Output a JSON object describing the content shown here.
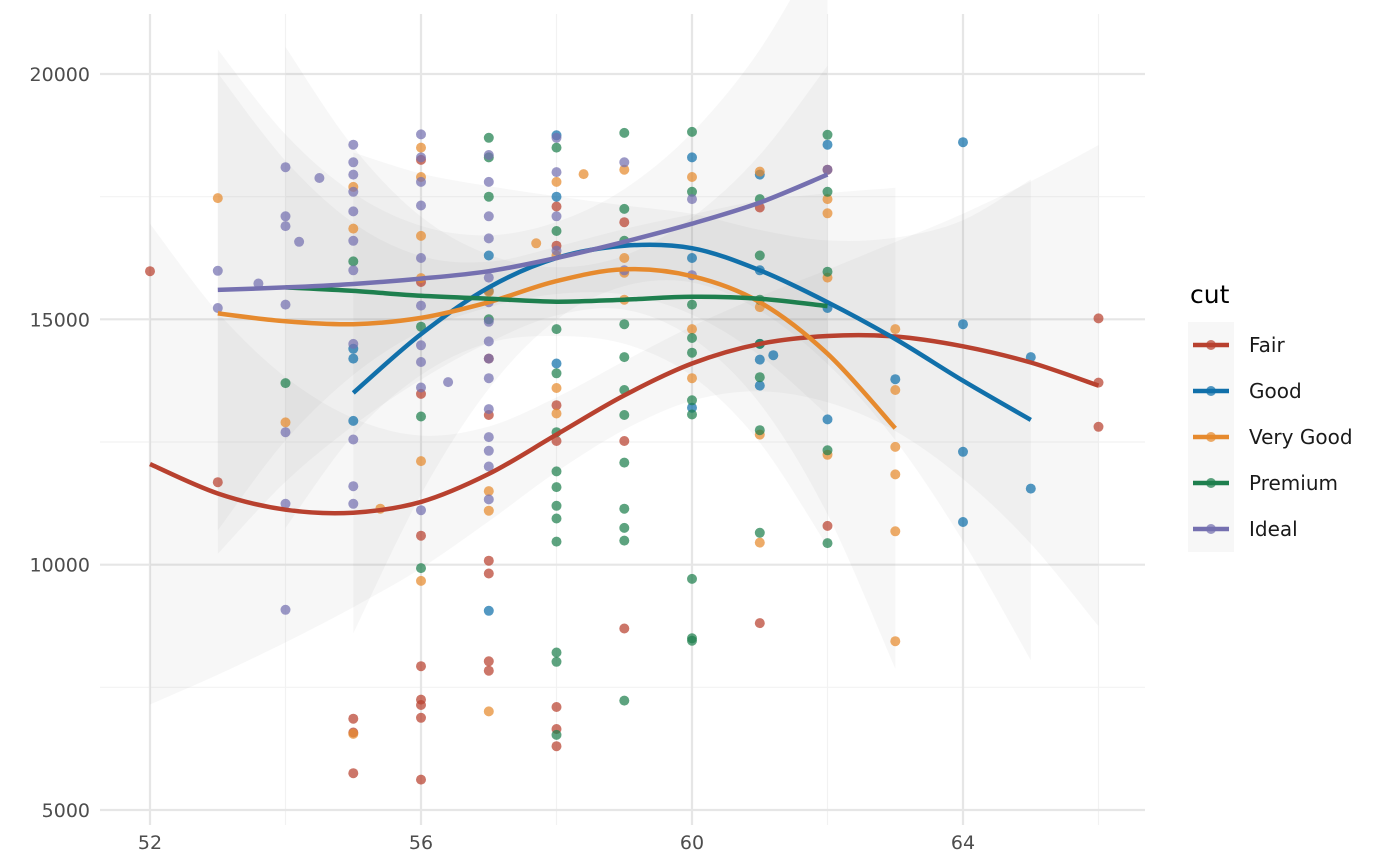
{
  "chart_data": {
    "type": "scatter",
    "title": "",
    "xlabel": "",
    "ylabel": "",
    "xlim": [
      51.8,
      66.5
    ],
    "ylim": [
      4900,
      21200
    ],
    "x_ticks": [
      52,
      56,
      60,
      64
    ],
    "x_tick_labels": [
      "52",
      "56",
      "60",
      "64"
    ],
    "y_ticks": [
      5000,
      10000,
      15000,
      20000
    ],
    "y_tick_labels": [
      "5000",
      "10000",
      "15000",
      "20000"
    ],
    "grid": true,
    "legend": {
      "title": "cut",
      "position": "right"
    },
    "series": [
      {
        "name": "Fair",
        "color": "#B8412F",
        "points": [
          [
            52,
            15980
          ],
          [
            53,
            11680
          ],
          [
            55,
            6860
          ],
          [
            55,
            6580
          ],
          [
            55,
            5750
          ],
          [
            56,
            18250
          ],
          [
            56,
            15760
          ],
          [
            56,
            13480
          ],
          [
            56,
            10590
          ],
          [
            56,
            7930
          ],
          [
            56,
            7250
          ],
          [
            56,
            7140
          ],
          [
            56,
            6880
          ],
          [
            56,
            5620
          ],
          [
            57,
            14200
          ],
          [
            57,
            13050
          ],
          [
            57,
            10080
          ],
          [
            57,
            9820
          ],
          [
            57,
            8030
          ],
          [
            57,
            7840
          ],
          [
            58,
            17300
          ],
          [
            58,
            16500
          ],
          [
            58,
            13250
          ],
          [
            58,
            12520
          ],
          [
            58,
            7100
          ],
          [
            58,
            6650
          ],
          [
            58,
            6300
          ],
          [
            59,
            16980
          ],
          [
            59,
            12520
          ],
          [
            59,
            8700
          ],
          [
            61,
            17280
          ],
          [
            61,
            8810
          ],
          [
            62,
            18050
          ],
          [
            62,
            10790
          ],
          [
            66,
            15020
          ],
          [
            66,
            13710
          ],
          [
            66,
            12810
          ]
        ],
        "trend": [
          [
            52,
            12050
          ],
          [
            53,
            11450
          ],
          [
            54,
            11120
          ],
          [
            55,
            11060
          ],
          [
            56,
            11280
          ],
          [
            57,
            11850
          ],
          [
            58,
            12650
          ],
          [
            59,
            13450
          ],
          [
            60,
            14100
          ],
          [
            61,
            14500
          ],
          [
            62,
            14660
          ],
          [
            63,
            14650
          ],
          [
            64,
            14450
          ],
          [
            65,
            14120
          ],
          [
            66,
            13650
          ]
        ]
      },
      {
        "name": "Good",
        "color": "#1170AA",
        "points": [
          [
            55,
            14400
          ],
          [
            55,
            14200
          ],
          [
            55,
            12930
          ],
          [
            57,
            16300
          ],
          [
            57,
            15580
          ],
          [
            57,
            9060
          ],
          [
            58,
            18750
          ],
          [
            58,
            17500
          ],
          [
            58,
            14100
          ],
          [
            60,
            18300
          ],
          [
            60,
            16250
          ],
          [
            60,
            13200
          ],
          [
            61,
            14500
          ],
          [
            61,
            14180
          ],
          [
            61,
            13650
          ],
          [
            61,
            17950
          ],
          [
            61,
            16000
          ],
          [
            61.2,
            14270
          ],
          [
            62,
            18560
          ],
          [
            62,
            15230
          ],
          [
            62,
            12960
          ],
          [
            63,
            13780
          ],
          [
            64,
            18610
          ],
          [
            64,
            14900
          ],
          [
            64,
            12300
          ],
          [
            64,
            10870
          ],
          [
            65,
            14230
          ],
          [
            65,
            11550
          ]
        ],
        "trend": [
          [
            55,
            13500
          ],
          [
            56,
            14700
          ],
          [
            57,
            15650
          ],
          [
            58,
            16250
          ],
          [
            59,
            16500
          ],
          [
            60,
            16450
          ],
          [
            61,
            16000
          ],
          [
            62,
            15350
          ],
          [
            63,
            14600
          ],
          [
            64,
            13750
          ],
          [
            65,
            12950
          ]
        ]
      },
      {
        "name": "Very Good",
        "color": "#E68A2E",
        "points": [
          [
            53,
            17470
          ],
          [
            54,
            12900
          ],
          [
            55,
            17700
          ],
          [
            55,
            16850
          ],
          [
            55,
            6550
          ],
          [
            55.4,
            11140
          ],
          [
            56,
            18500
          ],
          [
            56,
            17900
          ],
          [
            56,
            16700
          ],
          [
            56,
            15840
          ],
          [
            56,
            12110
          ],
          [
            56,
            9670
          ],
          [
            57,
            15560
          ],
          [
            57,
            11500
          ],
          [
            57,
            11100
          ],
          [
            57,
            7010
          ],
          [
            57.7,
            16550
          ],
          [
            58,
            17800
          ],
          [
            58,
            16300
          ],
          [
            58,
            13600
          ],
          [
            58,
            13080
          ],
          [
            58.4,
            17960
          ],
          [
            59,
            18050
          ],
          [
            59,
            16250
          ],
          [
            59,
            15950
          ],
          [
            59,
            15400
          ],
          [
            60,
            17900
          ],
          [
            60,
            14800
          ],
          [
            60,
            13800
          ],
          [
            61,
            18010
          ],
          [
            61,
            15250
          ],
          [
            61,
            12650
          ],
          [
            61,
            10450
          ],
          [
            62,
            17450
          ],
          [
            62,
            17160
          ],
          [
            62,
            15850
          ],
          [
            62,
            12240
          ],
          [
            63,
            14800
          ],
          [
            63,
            13560
          ],
          [
            63,
            12400
          ],
          [
            63,
            11840
          ],
          [
            63,
            10680
          ],
          [
            63,
            8440
          ]
        ],
        "trend": [
          [
            53,
            15120
          ],
          [
            54,
            14960
          ],
          [
            55,
            14900
          ],
          [
            56,
            15030
          ],
          [
            57,
            15350
          ],
          [
            58,
            15780
          ],
          [
            59,
            16020
          ],
          [
            60,
            15880
          ],
          [
            61,
            15350
          ],
          [
            62,
            14300
          ],
          [
            63,
            12780
          ]
        ]
      },
      {
        "name": "Premium",
        "color": "#1E7F4E",
        "points": [
          [
            54,
            13700
          ],
          [
            55,
            16180
          ],
          [
            56,
            14850
          ],
          [
            56,
            13020
          ],
          [
            56,
            9930
          ],
          [
            57,
            18700
          ],
          [
            57,
            18300
          ],
          [
            57,
            17500
          ],
          [
            57,
            15000
          ],
          [
            58,
            18500
          ],
          [
            58,
            16800
          ],
          [
            58,
            14800
          ],
          [
            58,
            13900
          ],
          [
            58,
            12700
          ],
          [
            58,
            11900
          ],
          [
            58,
            11580
          ],
          [
            58,
            11200
          ],
          [
            58,
            10940
          ],
          [
            58,
            10470
          ],
          [
            58,
            8210
          ],
          [
            58,
            8020
          ],
          [
            58,
            6530
          ],
          [
            59,
            18800
          ],
          [
            59,
            17250
          ],
          [
            59,
            16600
          ],
          [
            59,
            14900
          ],
          [
            59,
            14230
          ],
          [
            59,
            13560
          ],
          [
            59,
            13050
          ],
          [
            59,
            12080
          ],
          [
            59,
            11140
          ],
          [
            59,
            10750
          ],
          [
            59,
            10490
          ],
          [
            59,
            7230
          ],
          [
            60,
            18820
          ],
          [
            60,
            17600
          ],
          [
            60,
            15300
          ],
          [
            60,
            14620
          ],
          [
            60,
            14320
          ],
          [
            60,
            13350
          ],
          [
            60,
            13060
          ],
          [
            60,
            9710
          ],
          [
            60,
            8500
          ],
          [
            60,
            8450
          ],
          [
            61,
            17450
          ],
          [
            61,
            16300
          ],
          [
            61,
            15400
          ],
          [
            61,
            14500
          ],
          [
            61,
            13820
          ],
          [
            61,
            12740
          ],
          [
            61,
            10650
          ],
          [
            62,
            18760
          ],
          [
            62,
            17600
          ],
          [
            62,
            15970
          ],
          [
            62,
            12330
          ],
          [
            62,
            10440
          ]
        ],
        "trend": [
          [
            54,
            15650
          ],
          [
            55,
            15580
          ],
          [
            56,
            15480
          ],
          [
            57,
            15420
          ],
          [
            58,
            15360
          ],
          [
            59,
            15400
          ],
          [
            60,
            15460
          ],
          [
            61,
            15420
          ],
          [
            62,
            15270
          ]
        ]
      },
      {
        "name": "Ideal",
        "color": "#7570B0",
        "points": [
          [
            53,
            15990
          ],
          [
            53,
            15230
          ],
          [
            53.6,
            15730
          ],
          [
            54,
            18100
          ],
          [
            54,
            17100
          ],
          [
            54,
            16900
          ],
          [
            54,
            15300
          ],
          [
            54,
            12700
          ],
          [
            54,
            11240
          ],
          [
            54,
            9080
          ],
          [
            54.2,
            16580
          ],
          [
            54.5,
            17880
          ],
          [
            55,
            18560
          ],
          [
            55,
            18200
          ],
          [
            55,
            17950
          ],
          [
            55,
            17600
          ],
          [
            55,
            17200
          ],
          [
            55,
            16600
          ],
          [
            55,
            16000
          ],
          [
            55,
            14500
          ],
          [
            55,
            12550
          ],
          [
            55,
            11600
          ],
          [
            55,
            11240
          ],
          [
            56,
            18770
          ],
          [
            56,
            18300
          ],
          [
            56,
            17800
          ],
          [
            56,
            17320
          ],
          [
            56,
            16250
          ],
          [
            56,
            15280
          ],
          [
            56,
            14470
          ],
          [
            56,
            14130
          ],
          [
            56,
            13610
          ],
          [
            56,
            11110
          ],
          [
            56.4,
            13720
          ],
          [
            57,
            18350
          ],
          [
            57,
            17800
          ],
          [
            57,
            17100
          ],
          [
            57,
            16650
          ],
          [
            57,
            15850
          ],
          [
            57,
            15350
          ],
          [
            57,
            14950
          ],
          [
            57,
            14550
          ],
          [
            57,
            14200
          ],
          [
            57,
            13800
          ],
          [
            57,
            13170
          ],
          [
            57,
            12600
          ],
          [
            57,
            12320
          ],
          [
            57,
            12000
          ],
          [
            57,
            11330
          ],
          [
            58,
            18700
          ],
          [
            58,
            18000
          ],
          [
            58,
            17100
          ],
          [
            58,
            16400
          ],
          [
            59,
            18200
          ],
          [
            59,
            16000
          ],
          [
            60,
            17450
          ],
          [
            60,
            15900
          ],
          [
            62,
            18050
          ]
        ],
        "trend": [
          [
            53,
            15600
          ],
          [
            54,
            15650
          ],
          [
            55,
            15720
          ],
          [
            56,
            15830
          ],
          [
            57,
            15980
          ],
          [
            58,
            16250
          ],
          [
            59,
            16580
          ],
          [
            60,
            16950
          ],
          [
            61,
            17380
          ],
          [
            62,
            17950
          ]
        ]
      }
    ]
  }
}
